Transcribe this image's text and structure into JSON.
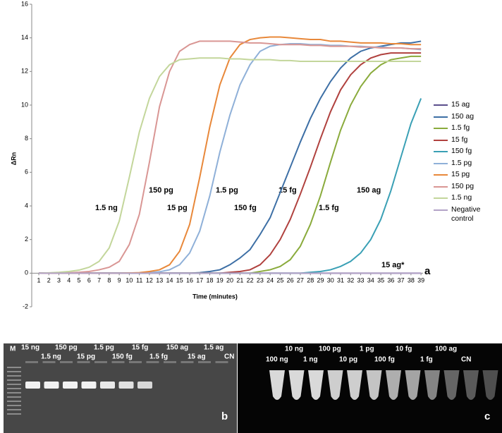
{
  "chart_data": {
    "type": "line",
    "y_label": "ΔRn",
    "x_label": "Time (minutes)",
    "x": [
      1,
      2,
      3,
      4,
      5,
      6,
      7,
      8,
      9,
      10,
      11,
      12,
      13,
      14,
      15,
      16,
      17,
      18,
      19,
      20,
      21,
      22,
      23,
      24,
      25,
      26,
      27,
      28,
      29,
      30,
      31,
      32,
      33,
      34,
      35,
      36,
      37,
      38,
      39
    ],
    "xlim": [
      0.3,
      39.2
    ],
    "xticks": [
      1,
      2,
      3,
      4,
      5,
      6,
      7,
      8,
      9,
      10,
      11,
      12,
      13,
      14,
      15,
      16,
      17,
      18,
      19,
      20,
      21,
      22,
      23,
      24,
      25,
      26,
      27,
      28,
      29,
      30,
      31,
      32,
      33,
      34,
      35,
      36,
      37,
      38,
      39
    ],
    "ylim": [
      -2,
      16
    ],
    "yticks": [
      -2,
      0,
      2,
      4,
      6,
      8,
      10,
      12,
      14,
      16
    ],
    "grid": false,
    "legend": "right",
    "series": [
      {
        "name": "15 ag",
        "color": "#5b4e8c",
        "values": [
          0,
          0,
          0,
          0,
          0,
          0,
          0,
          0,
          0,
          0,
          0,
          0,
          0,
          0,
          0,
          0,
          0,
          0,
          0,
          0,
          0,
          0,
          0,
          0,
          0,
          0,
          0,
          0,
          0,
          0,
          0,
          0,
          0,
          0,
          0,
          0,
          0,
          0,
          0
        ]
      },
      {
        "name": "150 ag",
        "color": "#3d6fa5",
        "values": [
          0,
          0,
          0,
          0,
          0,
          0,
          0,
          0,
          0,
          0,
          0,
          0,
          0,
          0,
          0,
          0,
          0.03,
          0.1,
          0.2,
          0.5,
          0.9,
          1.4,
          2.3,
          3.3,
          4.8,
          6.3,
          7.8,
          9.2,
          10.4,
          11.4,
          12.2,
          12.8,
          13.2,
          13.4,
          13.5,
          13.6,
          13.7,
          13.7,
          13.8
        ]
      },
      {
        "name": "1.5 fg",
        "color": "#8aab3c",
        "values": [
          0,
          0,
          0,
          0,
          0,
          0,
          0,
          0,
          0,
          0,
          0,
          0,
          0,
          0,
          0,
          0,
          0,
          0,
          0,
          0,
          0,
          0,
          0.1,
          0.2,
          0.4,
          0.8,
          1.6,
          2.9,
          4.6,
          6.6,
          8.5,
          10.0,
          11.1,
          11.9,
          12.4,
          12.7,
          12.8,
          12.9,
          12.9
        ]
      },
      {
        "name": "15 fg",
        "color": "#b0413e",
        "values": [
          0,
          0,
          0,
          0,
          0,
          0,
          0,
          0,
          0,
          0,
          0,
          0,
          0,
          0,
          0,
          0,
          0,
          0,
          0,
          0.05,
          0.1,
          0.2,
          0.5,
          1.1,
          2.0,
          3.2,
          4.7,
          6.3,
          8.0,
          9.6,
          10.9,
          11.8,
          12.4,
          12.8,
          13.0,
          13.1,
          13.1,
          13.1,
          13.1
        ]
      },
      {
        "name": "150 fg",
        "color": "#3aa0b5",
        "values": [
          0,
          0,
          0,
          0,
          0,
          0,
          0,
          0,
          0,
          0,
          0,
          0,
          0,
          0,
          0,
          0,
          0,
          0,
          0,
          0,
          0,
          0,
          0,
          0,
          0,
          0,
          0,
          0.05,
          0.1,
          0.2,
          0.4,
          0.7,
          1.2,
          2.0,
          3.2,
          4.9,
          6.9,
          8.9,
          10.4
        ]
      },
      {
        "name": "1.5 pg",
        "color": "#8fb0d8",
        "values": [
          0,
          0,
          0,
          0,
          0,
          0,
          0,
          0,
          0,
          0,
          0,
          0.03,
          0.08,
          0.2,
          0.5,
          1.2,
          2.5,
          4.6,
          7.2,
          9.4,
          11.2,
          12.4,
          13.2,
          13.5,
          13.6,
          13.65,
          13.65,
          13.6,
          13.6,
          13.55,
          13.55,
          13.5,
          13.5,
          13.45,
          13.45,
          13.4,
          13.4,
          13.35,
          13.3
        ]
      },
      {
        "name": "15 pg",
        "color": "#e8883a",
        "values": [
          0,
          0,
          0,
          0,
          0,
          0,
          0,
          0,
          0,
          0.01,
          0.03,
          0.1,
          0.2,
          0.5,
          1.3,
          2.9,
          5.7,
          8.7,
          11.2,
          12.8,
          13.6,
          13.9,
          14.0,
          14.05,
          14.05,
          14.0,
          13.95,
          13.9,
          13.9,
          13.8,
          13.8,
          13.75,
          13.7,
          13.7,
          13.7,
          13.65,
          13.65,
          13.6,
          13.6
        ]
      },
      {
        "name": "150 pg",
        "color": "#d99694",
        "values": [
          0,
          0,
          0.01,
          0.02,
          0.05,
          0.1,
          0.2,
          0.35,
          0.7,
          1.7,
          3.5,
          6.6,
          9.9,
          12.0,
          13.2,
          13.6,
          13.8,
          13.8,
          13.8,
          13.8,
          13.75,
          13.7,
          13.7,
          13.65,
          13.6,
          13.6,
          13.6,
          13.55,
          13.55,
          13.5,
          13.5,
          13.5,
          13.45,
          13.45,
          13.4,
          13.4,
          13.4,
          13.35,
          13.35
        ]
      },
      {
        "name": "1.5 ng",
        "color": "#c3d69b",
        "values": [
          0,
          0.02,
          0.05,
          0.1,
          0.18,
          0.35,
          0.7,
          1.5,
          3.1,
          5.7,
          8.4,
          10.4,
          11.7,
          12.4,
          12.7,
          12.75,
          12.8,
          12.8,
          12.8,
          12.75,
          12.75,
          12.7,
          12.7,
          12.7,
          12.65,
          12.65,
          12.6,
          12.6,
          12.6,
          12.6,
          12.6,
          12.6,
          12.6,
          12.6,
          12.6,
          12.6,
          12.6,
          12.6,
          12.6
        ]
      },
      {
        "name": "Negative control",
        "color": "#b3a2c7",
        "values": [
          0,
          0,
          0,
          0,
          0,
          0,
          0,
          0,
          0,
          0,
          0,
          0,
          0,
          0,
          0,
          0,
          0,
          0,
          0,
          0,
          0,
          0,
          0,
          0,
          0,
          0,
          0,
          0,
          0,
          0,
          0,
          0,
          0,
          0,
          0,
          0,
          0,
          0,
          0
        ]
      }
    ],
    "annotations": [
      "1.5 ng",
      "150 pg",
      "15 pg",
      "1.5 pg",
      "150 fg",
      "15 fg",
      "1.5 fg",
      "150 ag",
      "15 ag*"
    ],
    "panel_label": "a"
  },
  "gel_b": {
    "panel_label": "b",
    "labels": [
      "M",
      "15 ng",
      "150 pg",
      "1.5 pg",
      "15 fg",
      "150 ag",
      "1.5 ag",
      "1.5 ng",
      "15 pg",
      "150 fg",
      "1.5 fg",
      "15 ag",
      "CN"
    ]
  },
  "gel_c": {
    "panel_label": "c",
    "labels": [
      "10 ng",
      "100 pg",
      "1 pg",
      "10 fg",
      "100 ag",
      "100 ng",
      "1 ng",
      "10 pg",
      "100 fg",
      "1 fg",
      "CN"
    ]
  }
}
